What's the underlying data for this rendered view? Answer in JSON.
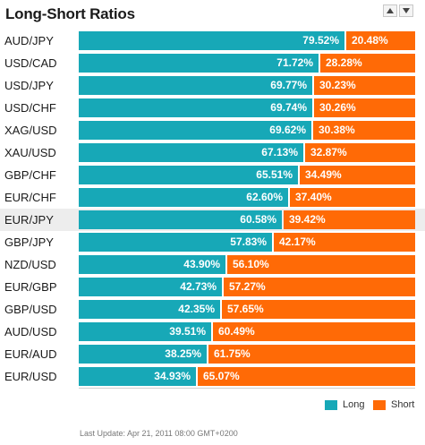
{
  "header": {
    "title": "Long-Short Ratios"
  },
  "controls": {
    "up_icon": "triangle-up-icon",
    "down_icon": "triangle-down-icon"
  },
  "colors": {
    "long": "#17a8b7",
    "short": "#ff6a06",
    "highlight_row": "#ededed"
  },
  "rows": [
    {
      "pair": "AUD/JPY",
      "long": 79.52,
      "short": 20.48,
      "long_label": "79.52%",
      "short_label": "20.48%"
    },
    {
      "pair": "USD/CAD",
      "long": 71.72,
      "short": 28.28,
      "long_label": "71.72%",
      "short_label": "28.28%"
    },
    {
      "pair": "USD/JPY",
      "long": 69.77,
      "short": 30.23,
      "long_label": "69.77%",
      "short_label": "30.23%"
    },
    {
      "pair": "USD/CHF",
      "long": 69.74,
      "short": 30.26,
      "long_label": "69.74%",
      "short_label": "30.26%"
    },
    {
      "pair": "XAG/USD",
      "long": 69.62,
      "short": 30.38,
      "long_label": "69.62%",
      "short_label": "30.38%"
    },
    {
      "pair": "XAU/USD",
      "long": 67.13,
      "short": 32.87,
      "long_label": "67.13%",
      "short_label": "32.87%"
    },
    {
      "pair": "GBP/CHF",
      "long": 65.51,
      "short": 34.49,
      "long_label": "65.51%",
      "short_label": "34.49%"
    },
    {
      "pair": "EUR/CHF",
      "long": 62.6,
      "short": 37.4,
      "long_label": "62.60%",
      "short_label": "37.40%"
    },
    {
      "pair": "EUR/JPY",
      "long": 60.58,
      "short": 39.42,
      "long_label": "60.58%",
      "short_label": "39.42%",
      "highlighted": true
    },
    {
      "pair": "GBP/JPY",
      "long": 57.83,
      "short": 42.17,
      "long_label": "57.83%",
      "short_label": "42.17%"
    },
    {
      "pair": "NZD/USD",
      "long": 43.9,
      "short": 56.1,
      "long_label": "43.90%",
      "short_label": "56.10%"
    },
    {
      "pair": "EUR/GBP",
      "long": 42.73,
      "short": 57.27,
      "long_label": "42.73%",
      "short_label": "57.27%"
    },
    {
      "pair": "GBP/USD",
      "long": 42.35,
      "short": 57.65,
      "long_label": "42.35%",
      "short_label": "57.65%"
    },
    {
      "pair": "AUD/USD",
      "long": 39.51,
      "short": 60.49,
      "long_label": "39.51%",
      "short_label": "60.49%"
    },
    {
      "pair": "EUR/AUD",
      "long": 38.25,
      "short": 61.75,
      "long_label": "38.25%",
      "short_label": "61.75%"
    },
    {
      "pair": "EUR/USD",
      "long": 34.93,
      "short": 65.07,
      "long_label": "34.93%",
      "short_label": "65.07%"
    }
  ],
  "legend": {
    "long_label": "Long",
    "short_label": "Short"
  },
  "footer": {
    "last_update": "Last Update: Apr 21, 2011 08:00 GMT+0200"
  }
}
